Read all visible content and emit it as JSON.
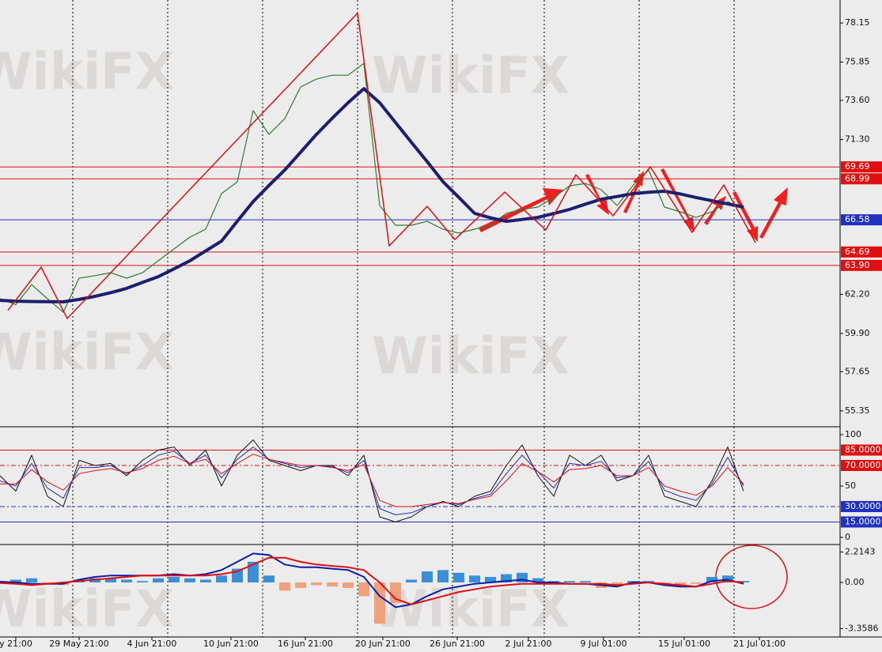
{
  "watermark": "WikiFX",
  "chart_data": [
    {
      "type": "line",
      "xlim": [
        0,
        53
      ],
      "ylim": [
        54.51,
        79.5
      ],
      "yticks": [
        78.15,
        75.85,
        {
          "value": 73.6,
          "label": "73.60"
        },
        {
          "value": 71.3,
          "label": "71.30"
        },
        {
          "value": 62.2,
          "label": "62.20"
        },
        {
          "value": 59.9,
          "label": "59.90"
        },
        57.65,
        55.35
      ],
      "levels": [
        {
          "value": 69.69,
          "color": "#e01010"
        },
        {
          "value": 68.99,
          "color": "#e01010"
        },
        {
          "value": 66.58,
          "color": "#2030c0"
        },
        {
          "value": 64.69,
          "color": "#e01010"
        },
        {
          "value": 63.9,
          "label": "63.90",
          "color": "#e01010"
        }
      ],
      "series": [
        {
          "color": "#2e7d32",
          "width": 1.2,
          "values": [
            61.94,
            61.6,
            62.77,
            61.94,
            61.15,
            63.15,
            63.3,
            63.47,
            63.15,
            63.47,
            64.17,
            64.87,
            65.56,
            66.03,
            68.12,
            68.81,
            73.0,
            71.6,
            72.53,
            74.39,
            74.85,
            75.08,
            75.08,
            75.78,
            67.42,
            66.26,
            66.26,
            66.49,
            66.03,
            65.8,
            66.03,
            66.26,
            66.96,
            67.19,
            67.33,
            67.89,
            68.58,
            68.72,
            68.35,
            67.42,
            68.58,
            69.51,
            67.33,
            67.05,
            66.72,
            67.05,
            67.65,
            67.19
          ]
        },
        {
          "color": "#1a1f6e",
          "width": 4,
          "values": [
            61.85,
            61.8,
            61.78,
            61.77,
            61.76,
            61.9,
            62.08,
            62.3,
            62.55,
            62.9,
            63.24,
            63.7,
            64.17,
            64.75,
            65.33,
            66.5,
            67.65,
            68.6,
            69.51,
            70.55,
            71.6,
            72.55,
            73.46,
            74.29,
            73.46,
            72.3,
            71.14,
            70.0,
            68.82,
            67.9,
            66.96,
            66.7,
            66.49,
            66.6,
            66.72,
            66.95,
            67.19,
            67.5,
            67.79,
            67.95,
            68.12,
            68.2,
            68.26,
            68.1,
            67.89,
            67.7,
            67.51,
            67.33
          ]
        },
        {
          "color": "#e01010",
          "width": 1.5,
          "x": [
            0.5,
            2.6,
            4.25,
            22.6,
            24.6,
            27,
            28.75,
            31.9,
            34.5,
            36.4,
            38.75,
            41.1,
            43.75,
            45.75,
            47.75
          ],
          "values": [
            61.26,
            63.8,
            60.78,
            78.73,
            65.05,
            67.37,
            65.42,
            68.21,
            65.98,
            69.23,
            66.82,
            69.7,
            65.84,
            68.63,
            65.24
          ]
        }
      ]
    },
    {
      "type": "line",
      "xlim": [
        0,
        53
      ],
      "ylim": [
        -6.2,
        105.4
      ],
      "yticks": [
        100,
        50,
        0
      ],
      "levels": [
        {
          "value": 85,
          "label": "85.0000",
          "color": "#e01010"
        },
        {
          "value": 70,
          "label": "70.0000",
          "color": "#e01010",
          "dash": true
        },
        {
          "value": 30,
          "label": "30.0000",
          "color": "#2030c0",
          "dash": true
        },
        {
          "value": 15,
          "label": "15.0000",
          "color": "#2030c0"
        }
      ],
      "series": [
        {
          "color": "#111111",
          "width": 1,
          "values": [
            60,
            45,
            80,
            40,
            30,
            75,
            70,
            72,
            60,
            75,
            85,
            88,
            70,
            85,
            50,
            80,
            95,
            75,
            70,
            65,
            70,
            70,
            60,
            80,
            20,
            15,
            20,
            30,
            35,
            30,
            40,
            45,
            70,
            90,
            60,
            40,
            80,
            70,
            80,
            55,
            60,
            80,
            40,
            35,
            30,
            55,
            88,
            45
          ]
        },
        {
          "color": "#2030c0",
          "width": 1,
          "values": [
            55,
            50,
            72,
            48,
            38,
            68,
            68,
            70,
            62,
            70,
            80,
            84,
            72,
            80,
            58,
            76,
            88,
            76,
            72,
            68,
            70,
            69,
            63,
            75,
            28,
            22,
            24,
            30,
            34,
            32,
            38,
            42,
            62,
            80,
            64,
            48,
            72,
            70,
            74,
            58,
            60,
            74,
            46,
            40,
            36,
            52,
            78,
            50
          ]
        },
        {
          "color": "#e01010",
          "width": 1,
          "values": [
            52,
            52,
            66,
            54,
            46,
            62,
            65,
            67,
            63,
            67,
            75,
            79,
            72,
            76,
            62,
            72,
            81,
            76,
            73,
            70,
            70,
            68,
            65,
            71,
            36,
            30,
            30,
            32,
            34,
            33,
            37,
            40,
            55,
            72,
            64,
            54,
            66,
            67,
            70,
            60,
            60,
            68,
            50,
            45,
            41,
            50,
            68,
            52
          ]
        }
      ]
    },
    {
      "type": "macd",
      "xlim": [
        0,
        53
      ],
      "ylim": [
        -3.97,
        2.7
      ],
      "yticks": [
        2.2143,
        {
          "value": 0,
          "label": "0.00"
        },
        -3.3586
      ],
      "hist_colors": [
        "#3a8fd6",
        "#f0a07a"
      ],
      "hist": [
        0.1,
        0.2,
        0.3,
        -0.1,
        -0.2,
        0.2,
        0.3,
        0.3,
        0.2,
        0.1,
        0.3,
        0.4,
        0.3,
        0.2,
        0.5,
        1.0,
        1.5,
        0.5,
        -0.6,
        -0.4,
        -0.2,
        -0.3,
        -0.4,
        -1.0,
        -3.0,
        -1.5,
        0.2,
        0.8,
        0.9,
        0.7,
        0.5,
        0.4,
        0.6,
        0.7,
        0.3,
        0.1,
        0.1,
        0.1,
        -0.4,
        -0.3,
        0.1,
        0.1,
        -0.2,
        -0.3,
        -0.1,
        0.4,
        0.5,
        0.1
      ],
      "series": [
        {
          "color": "#0b1ea8",
          "width": 2,
          "values": [
            0.05,
            0.0,
            -0.1,
            -0.1,
            -0.1,
            0.2,
            0.4,
            0.5,
            0.5,
            0.5,
            0.5,
            0.6,
            0.5,
            0.6,
            0.9,
            1.5,
            2.1,
            2.0,
            1.3,
            1.1,
            1.1,
            1.0,
            0.9,
            0.4,
            -1.0,
            -1.8,
            -1.6,
            -1.0,
            -0.5,
            -0.3,
            -0.1,
            0.0,
            0.1,
            0.2,
            0.0,
            0.0,
            -0.1,
            -0.1,
            -0.2,
            -0.3,
            0.0,
            0.0,
            -0.2,
            -0.3,
            -0.3,
            0.1,
            0.2,
            -0.1
          ]
        },
        {
          "color": "#e01010",
          "width": 2,
          "values": [
            -0.05,
            -0.1,
            -0.2,
            -0.1,
            0.0,
            0.1,
            0.2,
            0.3,
            0.4,
            0.5,
            0.5,
            0.5,
            0.5,
            0.5,
            0.6,
            0.8,
            1.3,
            1.8,
            1.8,
            1.5,
            1.3,
            1.2,
            1.1,
            0.9,
            0.0,
            -1.2,
            -1.6,
            -1.3,
            -1.0,
            -0.7,
            -0.5,
            -0.3,
            -0.2,
            -0.1,
            -0.1,
            -0.1,
            -0.1,
            -0.1,
            -0.1,
            -0.2,
            -0.1,
            0.0,
            -0.1,
            -0.2,
            -0.3,
            -0.1,
            0.1,
            0.0
          ]
        }
      ],
      "xticks": [
        {
          "value": 1,
          "label": "y 21:00"
        },
        {
          "value": 5,
          "label": "29 May 21:00"
        },
        {
          "value": 9.6,
          "label": "4 Jun 21:00"
        },
        {
          "value": 14.6,
          "label": "10 Jun 21:00"
        },
        {
          "value": 19.3,
          "label": "16 Jun 21:00"
        },
        {
          "value": 24.2,
          "label": "20 Jun 21:00"
        },
        {
          "value": 28.9,
          "label": "26 Jun 21:00"
        },
        {
          "value": 33.4,
          "label": "2 Jul 21:00"
        },
        {
          "value": 38.15,
          "label": "9 Jul 01:00"
        },
        {
          "value": 43.25,
          "label": "15 Jul 01:00"
        },
        {
          "value": 48,
          "label": "21 Jul 01:00"
        }
      ]
    }
  ]
}
